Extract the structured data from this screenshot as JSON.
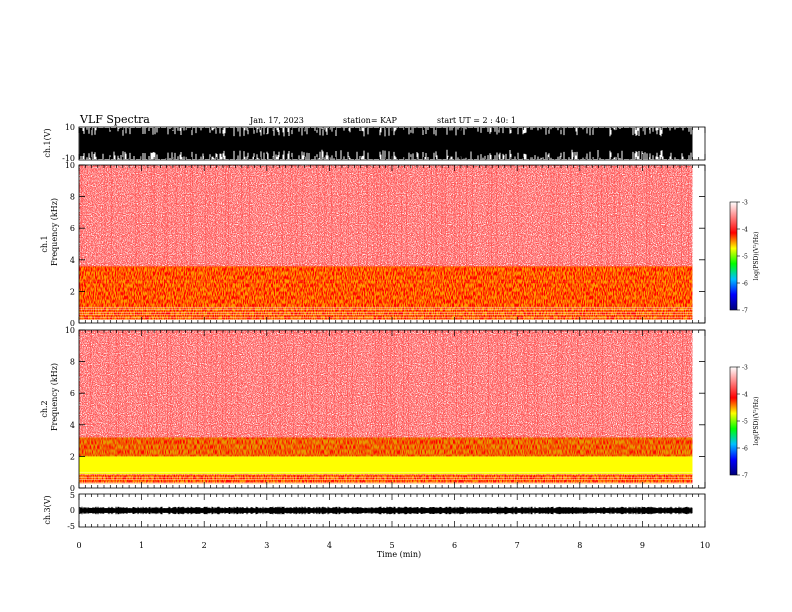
{
  "header": {
    "title": "VLF Spectra",
    "date": "Jan. 17, 2023",
    "station": "station= KAP",
    "start": "start UT =  2 : 40: 1"
  },
  "xaxis": {
    "label": "Time  (min)",
    "ticks": [
      "0",
      "1",
      "2",
      "3",
      "4",
      "5",
      "6",
      "7",
      "8",
      "9",
      "10"
    ],
    "range": [
      0,
      10
    ]
  },
  "panels": {
    "ch1_wave": {
      "ylabel": "ch.1(V)",
      "ticks": [
        "10",
        "-10"
      ],
      "range": [
        -10,
        10
      ]
    },
    "ch1_spec": {
      "ylabel_ch": "ch.1",
      "ylabel_freq": "Frequency  (kHz)",
      "ticks": [
        "0",
        "2",
        "4",
        "6",
        "8",
        "10"
      ],
      "range": [
        0,
        10
      ]
    },
    "ch2_spec": {
      "ylabel_ch": "ch.2",
      "ylabel_freq": "Frequency  (kHz)",
      "ticks": [
        "0",
        "2",
        "4",
        "6",
        "8",
        "10"
      ],
      "range": [
        0,
        10
      ]
    },
    "ch3_wave": {
      "ylabel": "ch.3(V)",
      "ticks": [
        "5",
        "0",
        "-5"
      ],
      "range": [
        -5,
        5
      ]
    }
  },
  "colorbar": {
    "label": "log(PSD)(V²/Hz)",
    "ticks": [
      "-3",
      "-4",
      "-5",
      "-6",
      "-7"
    ],
    "range": [
      -7,
      -3
    ],
    "colors": [
      "#00007a",
      "#0000ff",
      "#00c0ff",
      "#00ff00",
      "#ffff00",
      "#ff0000",
      "#ff8080",
      "#ffffff"
    ]
  },
  "chart_data": [
    {
      "type": "line",
      "title": "",
      "ylabel": "ch.1(V)",
      "xlabel": "",
      "xlim": [
        0,
        9.8
      ],
      "ylim": [
        -10,
        10
      ],
      "note_values": "saturated broadband waveform, amplitude mostly near ±10 V"
    },
    {
      "type": "heatmap",
      "ylabel": "ch.1 Frequency (kHz)",
      "xlim": [
        0,
        9.8
      ],
      "ylim": [
        0,
        10
      ],
      "bands_khz": [
        {
          "range": [
            0.2,
            0.9
          ],
          "level": -4.0
        },
        {
          "range": [
            0.9,
            2.6
          ],
          "level": -4.3
        },
        {
          "range": [
            2.6,
            3.6
          ],
          "level": -4.0
        },
        {
          "range": [
            3.6,
            10
          ],
          "level": -3.3
        }
      ]
    },
    {
      "type": "heatmap",
      "ylabel": "ch.2 Frequency (kHz)",
      "xlim": [
        0,
        9.8
      ],
      "ylim": [
        0,
        10
      ],
      "bands_khz": [
        {
          "range": [
            0.3,
            0.9
          ],
          "level": -4.1
        },
        {
          "range": [
            0.9,
            2.0
          ],
          "level": -4.8
        },
        {
          "range": [
            2.0,
            3.2
          ],
          "level": -4.4
        },
        {
          "range": [
            3.2,
            10
          ],
          "level": -3.3
        }
      ]
    },
    {
      "type": "line",
      "ylabel": "ch.3(V)",
      "xlim": [
        0,
        9.8
      ],
      "ylim": [
        -5,
        5
      ],
      "note_values": "near-constant signal around 0 V"
    }
  ]
}
